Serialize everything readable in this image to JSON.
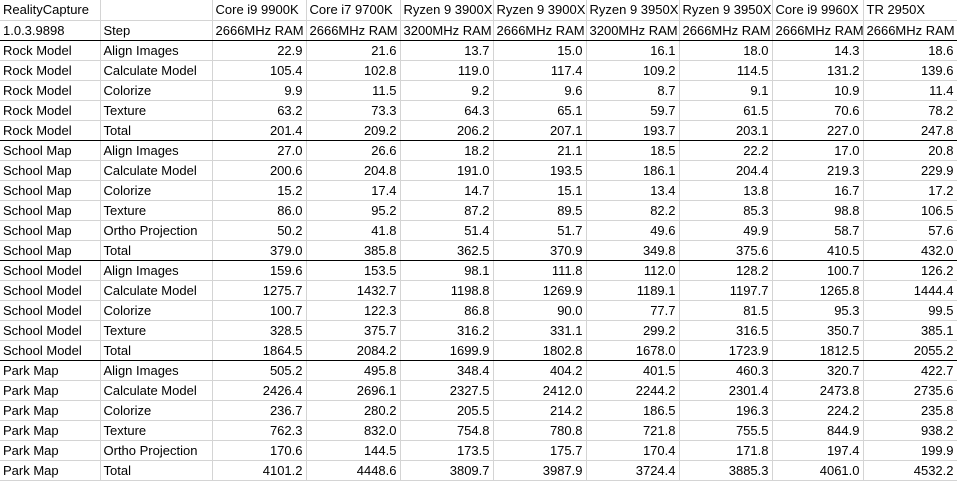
{
  "header": {
    "corner_line1": "RealityCapture",
    "corner_line2": "1.0.3.9898",
    "step_label": "Step",
    "cpus": [
      {
        "name": "Core i9 9900K",
        "ram": "2666MHz RAM"
      },
      {
        "name": "Core i7 9700K",
        "ram": "2666MHz RAM"
      },
      {
        "name": "Ryzen 9 3900X",
        "ram": "3200MHz RAM"
      },
      {
        "name": "Ryzen 9 3900X",
        "ram": "2666MHz RAM"
      },
      {
        "name": "Ryzen 9 3950X",
        "ram": "3200MHz RAM"
      },
      {
        "name": "Ryzen 9 3950X",
        "ram": "2666MHz RAM"
      },
      {
        "name": "Core i9 9960X",
        "ram": "2666MHz RAM"
      },
      {
        "name": "TR 2950X",
        "ram": "2666MHz RAM"
      }
    ]
  },
  "rows": [
    {
      "project": "Rock Model",
      "step": "Align Images",
      "values": [
        "22.9",
        "21.6",
        "13.7",
        "15.0",
        "16.1",
        "18.0",
        "14.3",
        "18.6"
      ]
    },
    {
      "project": "Rock Model",
      "step": "Calculate Model",
      "values": [
        "105.4",
        "102.8",
        "119.0",
        "117.4",
        "109.2",
        "114.5",
        "131.2",
        "139.6"
      ]
    },
    {
      "project": "Rock Model",
      "step": "Colorize",
      "values": [
        "9.9",
        "11.5",
        "9.2",
        "9.6",
        "8.7",
        "9.1",
        "10.9",
        "11.4"
      ]
    },
    {
      "project": "Rock Model",
      "step": "Texture",
      "values": [
        "63.2",
        "73.3",
        "64.3",
        "65.1",
        "59.7",
        "61.5",
        "70.6",
        "78.2"
      ]
    },
    {
      "project": "Rock Model",
      "step": "Total",
      "values": [
        "201.4",
        "209.2",
        "206.2",
        "207.1",
        "193.7",
        "203.1",
        "227.0",
        "247.8"
      ],
      "group_end": true
    },
    {
      "project": "School Map",
      "step": "Align Images",
      "values": [
        "27.0",
        "26.6",
        "18.2",
        "21.1",
        "18.5",
        "22.2",
        "17.0",
        "20.8"
      ]
    },
    {
      "project": "School Map",
      "step": "Calculate Model",
      "values": [
        "200.6",
        "204.8",
        "191.0",
        "193.5",
        "186.1",
        "204.4",
        "219.3",
        "229.9"
      ]
    },
    {
      "project": "School Map",
      "step": "Colorize",
      "values": [
        "15.2",
        "17.4",
        "14.7",
        "15.1",
        "13.4",
        "13.8",
        "16.7",
        "17.2"
      ]
    },
    {
      "project": "School Map",
      "step": "Texture",
      "values": [
        "86.0",
        "95.2",
        "87.2",
        "89.5",
        "82.2",
        "85.3",
        "98.8",
        "106.5"
      ]
    },
    {
      "project": "School Map",
      "step": "Ortho Projection",
      "values": [
        "50.2",
        "41.8",
        "51.4",
        "51.7",
        "49.6",
        "49.9",
        "58.7",
        "57.6"
      ]
    },
    {
      "project": "School Map",
      "step": "Total",
      "values": [
        "379.0",
        "385.8",
        "362.5",
        "370.9",
        "349.8",
        "375.6",
        "410.5",
        "432.0"
      ],
      "group_end": true
    },
    {
      "project": "School Model",
      "step": "Align Images",
      "values": [
        "159.6",
        "153.5",
        "98.1",
        "111.8",
        "112.0",
        "128.2",
        "100.7",
        "126.2"
      ]
    },
    {
      "project": "School Model",
      "step": "Calculate Model",
      "values": [
        "1275.7",
        "1432.7",
        "1198.8",
        "1269.9",
        "1189.1",
        "1197.7",
        "1265.8",
        "1444.4"
      ]
    },
    {
      "project": "School Model",
      "step": "Colorize",
      "values": [
        "100.7",
        "122.3",
        "86.8",
        "90.0",
        "77.7",
        "81.5",
        "95.3",
        "99.5"
      ]
    },
    {
      "project": "School Model",
      "step": "Texture",
      "values": [
        "328.5",
        "375.7",
        "316.2",
        "331.1",
        "299.2",
        "316.5",
        "350.7",
        "385.1"
      ]
    },
    {
      "project": "School Model",
      "step": "Total",
      "values": [
        "1864.5",
        "2084.2",
        "1699.9",
        "1802.8",
        "1678.0",
        "1723.9",
        "1812.5",
        "2055.2"
      ],
      "group_end": true
    },
    {
      "project": "Park Map",
      "step": "Align Images",
      "values": [
        "505.2",
        "495.8",
        "348.4",
        "404.2",
        "401.5",
        "460.3",
        "320.7",
        "422.7"
      ]
    },
    {
      "project": "Park Map",
      "step": "Calculate Model",
      "values": [
        "2426.4",
        "2696.1",
        "2327.5",
        "2412.0",
        "2244.2",
        "2301.4",
        "2473.8",
        "2735.6"
      ]
    },
    {
      "project": "Park Map",
      "step": "Colorize",
      "values": [
        "236.7",
        "280.2",
        "205.5",
        "214.2",
        "186.5",
        "196.3",
        "224.2",
        "235.8"
      ]
    },
    {
      "project": "Park Map",
      "step": "Texture",
      "values": [
        "762.3",
        "832.0",
        "754.8",
        "780.8",
        "721.8",
        "755.5",
        "844.9",
        "938.2"
      ]
    },
    {
      "project": "Park Map",
      "step": "Ortho Projection",
      "values": [
        "170.6",
        "144.5",
        "173.5",
        "175.7",
        "170.4",
        "171.8",
        "197.4",
        "199.9"
      ]
    },
    {
      "project": "Park Map",
      "step": "Total",
      "values": [
        "4101.2",
        "4448.6",
        "3809.7",
        "3987.9",
        "3724.4",
        "3885.3",
        "4061.0",
        "4532.2"
      ]
    }
  ]
}
